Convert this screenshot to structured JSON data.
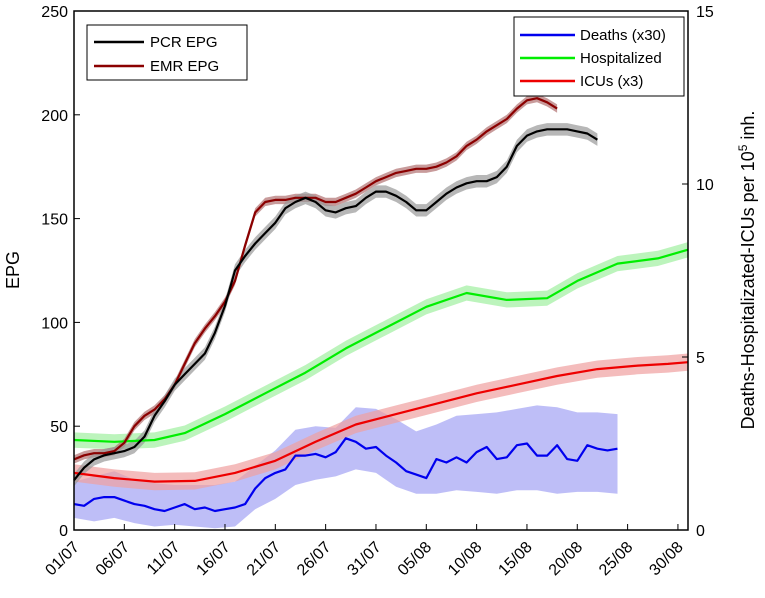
{
  "chart_data": {
    "type": "line",
    "title": "",
    "xlabel": "",
    "ylabel": "EPG",
    "y2label": "Deaths-Hospitalizated-ICUs per 10^5 inh.",
    "y2label_parts": {
      "before": "Deaths-Hospitalizated-ICUs per 10",
      "sup": "5",
      "after": " inh."
    },
    "xlim": [
      1,
      62
    ],
    "ylim": [
      0,
      250
    ],
    "y2lim": [
      0,
      15
    ],
    "xticks": [
      1,
      6,
      11,
      16,
      21,
      26,
      31,
      36,
      41,
      46,
      51,
      56,
      61
    ],
    "xtick_labels": [
      "01/07",
      "06/07",
      "11/07",
      "16/07",
      "21/07",
      "26/07",
      "31/07",
      "05/08",
      "10/08",
      "15/08",
      "20/08",
      "25/08",
      "30/08"
    ],
    "yticks": [
      0,
      50,
      100,
      150,
      200,
      250
    ],
    "yticks_labels": [
      "0",
      "50",
      "100",
      "150",
      "200",
      "250"
    ],
    "y2ticks": [
      0,
      5,
      10,
      15
    ],
    "y2ticks_labels": [
      "0",
      "5",
      "10",
      "15"
    ],
    "grid": false,
    "legend_left": {
      "position": "top-left",
      "entries": [
        {
          "label": "PCR EPG",
          "color": "#000000"
        },
        {
          "label": "EMR EPG",
          "color": "#8b0000"
        }
      ]
    },
    "legend_right": {
      "position": "top-right",
      "entries": [
        {
          "label": "Deaths (x30)",
          "color": "#0000ee"
        },
        {
          "label": "Hospitalized",
          "color": "#00ee00"
        },
        {
          "label": "ICUs (x3)",
          "color": "#ee0000"
        }
      ]
    },
    "series": [
      {
        "name": "PCR EPG",
        "axis": "left",
        "color": "#000000",
        "band_color": "#999999",
        "band_width": 3,
        "points": [
          [
            1,
            24
          ],
          [
            2,
            30
          ],
          [
            3,
            34
          ],
          [
            4,
            36
          ],
          [
            5,
            37
          ],
          [
            6,
            38
          ],
          [
            7,
            40
          ],
          [
            8,
            45
          ],
          [
            9,
            55
          ],
          [
            10,
            62
          ],
          [
            11,
            70
          ],
          [
            12,
            75
          ],
          [
            13,
            80
          ],
          [
            14,
            85
          ],
          [
            15,
            95
          ],
          [
            16,
            108
          ],
          [
            17,
            125
          ],
          [
            18,
            132
          ],
          [
            19,
            138
          ],
          [
            20,
            143
          ],
          [
            21,
            148
          ],
          [
            22,
            155
          ],
          [
            23,
            158
          ],
          [
            24,
            160
          ],
          [
            25,
            158
          ],
          [
            26,
            154
          ],
          [
            27,
            153
          ],
          [
            28,
            155
          ],
          [
            29,
            156
          ],
          [
            30,
            160
          ],
          [
            31,
            163
          ],
          [
            32,
            163
          ],
          [
            33,
            161
          ],
          [
            34,
            158
          ],
          [
            35,
            154
          ],
          [
            36,
            154
          ],
          [
            37,
            158
          ],
          [
            38,
            162
          ],
          [
            39,
            165
          ],
          [
            40,
            167
          ],
          [
            41,
            168
          ],
          [
            42,
            168
          ],
          [
            43,
            170
          ],
          [
            44,
            175
          ],
          [
            45,
            185
          ],
          [
            46,
            190
          ],
          [
            47,
            192
          ],
          [
            48,
            193
          ],
          [
            49,
            193
          ],
          [
            50,
            193
          ],
          [
            51,
            192
          ],
          [
            52,
            191
          ],
          [
            53,
            188
          ]
        ]
      },
      {
        "name": "EMR EPG",
        "axis": "left",
        "color": "#8b0000",
        "band_color": "#b07070",
        "band_width": 2,
        "points": [
          [
            1,
            34
          ],
          [
            2,
            36
          ],
          [
            3,
            37
          ],
          [
            4,
            37
          ],
          [
            5,
            38
          ],
          [
            6,
            42
          ],
          [
            7,
            50
          ],
          [
            8,
            55
          ],
          [
            9,
            58
          ],
          [
            10,
            63
          ],
          [
            11,
            70
          ],
          [
            12,
            80
          ],
          [
            13,
            90
          ],
          [
            14,
            97
          ],
          [
            15,
            103
          ],
          [
            16,
            110
          ],
          [
            17,
            120
          ],
          [
            18,
            137
          ],
          [
            19,
            153
          ],
          [
            20,
            158
          ],
          [
            21,
            159
          ],
          [
            22,
            159
          ],
          [
            23,
            160
          ],
          [
            24,
            160
          ],
          [
            25,
            160
          ],
          [
            26,
            158
          ],
          [
            27,
            158
          ],
          [
            28,
            160
          ],
          [
            29,
            162
          ],
          [
            30,
            165
          ],
          [
            31,
            168
          ],
          [
            32,
            170
          ],
          [
            33,
            172
          ],
          [
            34,
            173
          ],
          [
            35,
            174
          ],
          [
            36,
            174
          ],
          [
            37,
            175
          ],
          [
            38,
            177
          ],
          [
            39,
            180
          ],
          [
            40,
            185
          ],
          [
            41,
            188
          ],
          [
            42,
            192
          ],
          [
            43,
            195
          ],
          [
            44,
            198
          ],
          [
            45,
            203
          ],
          [
            46,
            207
          ],
          [
            47,
            208
          ],
          [
            48,
            206
          ],
          [
            49,
            203
          ]
        ]
      },
      {
        "name": "Hospitalized",
        "axis": "right",
        "color": "#00ee00",
        "band_color": "#a0f0a0",
        "band_width": 0.22,
        "points": [
          [
            1,
            2.6
          ],
          [
            5,
            2.55
          ],
          [
            9,
            2.6
          ],
          [
            12,
            2.8
          ],
          [
            16,
            3.35
          ],
          [
            20,
            3.95
          ],
          [
            24,
            4.55
          ],
          [
            28,
            5.25
          ],
          [
            32,
            5.85
          ],
          [
            36,
            6.45
          ],
          [
            40,
            6.85
          ],
          [
            44,
            6.65
          ],
          [
            48,
            6.7
          ],
          [
            51,
            7.2
          ],
          [
            55,
            7.7
          ],
          [
            59,
            7.85
          ],
          [
            62,
            8.1
          ]
        ]
      },
      {
        "name": "ICUs (x3)",
        "axis": "right",
        "color": "#ee0000",
        "band_color": "#f0a0a0",
        "band_width": 0.25,
        "points": [
          [
            1,
            1.65
          ],
          [
            5,
            1.5
          ],
          [
            9,
            1.4
          ],
          [
            13,
            1.42
          ],
          [
            17,
            1.65
          ],
          [
            21,
            2.0
          ],
          [
            25,
            2.55
          ],
          [
            29,
            3.05
          ],
          [
            33,
            3.35
          ],
          [
            37,
            3.65
          ],
          [
            41,
            3.95
          ],
          [
            45,
            4.2
          ],
          [
            49,
            4.45
          ],
          [
            53,
            4.65
          ],
          [
            57,
            4.75
          ],
          [
            60,
            4.8
          ],
          [
            62,
            4.85
          ]
        ]
      },
      {
        "name": "Deaths (x30)",
        "axis": "right",
        "color": "#0000ee",
        "band_color": "#a8a8f4",
        "points": [
          [
            1,
            0.75
          ],
          [
            2,
            0.7
          ],
          [
            3,
            0.9
          ],
          [
            4,
            0.95
          ],
          [
            5,
            0.95
          ],
          [
            6,
            0.85
          ],
          [
            7,
            0.75
          ],
          [
            8,
            0.7
          ],
          [
            9,
            0.6
          ],
          [
            10,
            0.55
          ],
          [
            11,
            0.65
          ],
          [
            12,
            0.75
          ],
          [
            13,
            0.6
          ],
          [
            14,
            0.65
          ],
          [
            15,
            0.55
          ],
          [
            16,
            0.6
          ],
          [
            17,
            0.65
          ],
          [
            18,
            0.75
          ],
          [
            19,
            1.2
          ],
          [
            20,
            1.5
          ],
          [
            21,
            1.65
          ],
          [
            22,
            1.75
          ],
          [
            23,
            2.15
          ],
          [
            24,
            2.15
          ],
          [
            25,
            2.2
          ],
          [
            26,
            2.1
          ],
          [
            27,
            2.25
          ],
          [
            28,
            2.65
          ],
          [
            29,
            2.55
          ],
          [
            30,
            2.35
          ],
          [
            31,
            2.4
          ],
          [
            32,
            2.15
          ],
          [
            33,
            1.95
          ],
          [
            34,
            1.7
          ],
          [
            35,
            1.6
          ],
          [
            36,
            1.5
          ],
          [
            37,
            2.05
          ],
          [
            38,
            1.95
          ],
          [
            39,
            2.1
          ],
          [
            40,
            1.95
          ],
          [
            41,
            2.25
          ],
          [
            42,
            2.4
          ],
          [
            43,
            2.05
          ],
          [
            44,
            2.1
          ],
          [
            45,
            2.45
          ],
          [
            46,
            2.5
          ],
          [
            47,
            2.15
          ],
          [
            48,
            2.15
          ],
          [
            49,
            2.45
          ],
          [
            50,
            2.05
          ],
          [
            51,
            2.0
          ],
          [
            52,
            2.45
          ],
          [
            53,
            2.35
          ],
          [
            54,
            2.3
          ],
          [
            55,
            2.35
          ]
        ],
        "band_upper": [
          [
            1,
            1.4
          ],
          [
            3,
            1.55
          ],
          [
            5,
            1.7
          ],
          [
            7,
            1.45
          ],
          [
            9,
            1.35
          ],
          [
            11,
            1.3
          ],
          [
            13,
            1.3
          ],
          [
            15,
            1.3
          ],
          [
            17,
            1.4
          ],
          [
            19,
            1.85
          ],
          [
            21,
            2.3
          ],
          [
            23,
            2.9
          ],
          [
            25,
            3.0
          ],
          [
            27,
            2.95
          ],
          [
            29,
            3.55
          ],
          [
            31,
            3.5
          ],
          [
            33,
            3.2
          ],
          [
            35,
            2.85
          ],
          [
            37,
            3.05
          ],
          [
            39,
            3.3
          ],
          [
            41,
            3.35
          ],
          [
            43,
            3.4
          ],
          [
            45,
            3.5
          ],
          [
            47,
            3.6
          ],
          [
            49,
            3.55
          ],
          [
            51,
            3.4
          ],
          [
            53,
            3.4
          ],
          [
            55,
            3.35
          ]
        ],
        "band_lower": [
          [
            1,
            0.35
          ],
          [
            3,
            0.25
          ],
          [
            5,
            0.35
          ],
          [
            7,
            0.2
          ],
          [
            9,
            0.1
          ],
          [
            11,
            0.15
          ],
          [
            13,
            0.1
          ],
          [
            15,
            0.05
          ],
          [
            17,
            0.1
          ],
          [
            19,
            0.6
          ],
          [
            21,
            0.9
          ],
          [
            23,
            1.3
          ],
          [
            25,
            1.45
          ],
          [
            27,
            1.55
          ],
          [
            29,
            1.75
          ],
          [
            31,
            1.65
          ],
          [
            33,
            1.25
          ],
          [
            35,
            1.05
          ],
          [
            37,
            1.05
          ],
          [
            39,
            1.15
          ],
          [
            41,
            1.1
          ],
          [
            43,
            1.05
          ],
          [
            45,
            1.15
          ],
          [
            47,
            1.15
          ],
          [
            49,
            1.05
          ],
          [
            51,
            1.1
          ],
          [
            53,
            1.1
          ],
          [
            55,
            1.05
          ]
        ]
      }
    ]
  }
}
